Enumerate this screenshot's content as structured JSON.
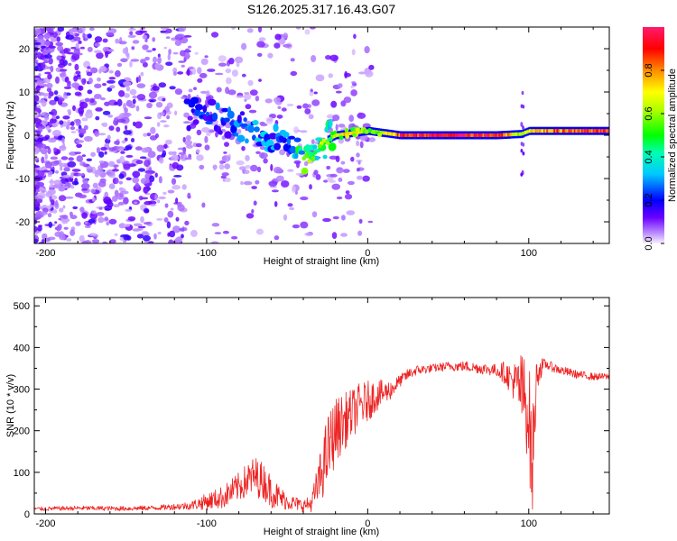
{
  "title": "S126.2025.317.16.43.G07",
  "colors": {
    "spectrum_palette": [
      "#9400d3",
      "#4b00ff",
      "#0000ff",
      "#00ffff",
      "#00ff00",
      "#ffff00",
      "#ff7f00",
      "#ff0000",
      "#ff1493"
    ],
    "snr_line": "#ee2222",
    "axis": "#000000"
  },
  "chart_data": [
    {
      "type": "heatmap",
      "title": "S126.2025.317.16.43.G07",
      "xlabel": "Height of straight line (km)",
      "ylabel": "Frequency (Hz)",
      "xlim": [
        -207,
        150
      ],
      "ylim": [
        -25,
        25
      ],
      "xticks": [
        -200,
        -100,
        0,
        100
      ],
      "xtick_labels": [
        "-200",
        "-100",
        "0",
        "100"
      ],
      "yticks": [
        20,
        10,
        0,
        -10,
        -20
      ],
      "ytick_labels": [
        "20",
        "10",
        "0",
        "-10",
        "-20"
      ],
      "colorbar": {
        "label": "Normalized spectral amplitude",
        "range": [
          0,
          1
        ],
        "ticks": [
          0.0,
          0.2,
          0.4,
          0.6,
          0.8
        ],
        "tick_labels": [
          "0.0",
          "0.2",
          "0.4",
          "0.6",
          "0.8"
        ]
      },
      "ridge": {
        "description": "dominant frequency ridge",
        "x": [
          -110,
          -90,
          -75,
          -60,
          -48,
          -40,
          -35,
          -30,
          -25,
          -20,
          -10,
          0,
          10,
          20,
          50,
          80,
          95,
          100,
          120,
          150
        ],
        "y": [
          5,
          4,
          2,
          0,
          -3,
          -5,
          -6,
          -3,
          -1,
          0,
          0.5,
          1,
          0.5,
          0,
          0,
          0,
          0.3,
          1,
          1,
          1
        ],
        "amplitude": [
          0.2,
          0.25,
          0.3,
          0.3,
          0.3,
          0.5,
          0.55,
          0.4,
          0.5,
          0.7,
          0.75,
          0.6,
          0.7,
          0.9,
          0.95,
          0.9,
          0.6,
          0.75,
          0.85,
          0.95
        ]
      },
      "vertical_spike": {
        "x": 96,
        "y_range": [
          -10,
          10
        ]
      }
    },
    {
      "type": "line",
      "xlabel": "Height of straight line (km)",
      "ylabel": "SNR (10 * v/v)",
      "xlim": [
        -207,
        150
      ],
      "ylim": [
        0,
        520
      ],
      "xticks": [
        -200,
        -100,
        0,
        100
      ],
      "xtick_labels": [
        "-200",
        "-100",
        "0",
        "100"
      ],
      "yticks": [
        0,
        100,
        200,
        300,
        400,
        500
      ],
      "ytick_labels": [
        "0",
        "100",
        "200",
        "300",
        "400",
        "500"
      ],
      "series": [
        {
          "name": "SNR",
          "x": [
            -207,
            -180,
            -150,
            -130,
            -110,
            -100,
            -90,
            -80,
            -75,
            -70,
            -65,
            -60,
            -55,
            -50,
            -45,
            -40,
            -35,
            -30,
            -25,
            -20,
            -15,
            -10,
            -5,
            0,
            5,
            10,
            15,
            20,
            25,
            30,
            40,
            50,
            60,
            70,
            80,
            85,
            90,
            95,
            100,
            102,
            105,
            110,
            120,
            130,
            140,
            150
          ],
          "y": [
            12,
            14,
            13,
            15,
            20,
            30,
            40,
            65,
            80,
            90,
            80,
            55,
            40,
            30,
            25,
            20,
            25,
            80,
            150,
            200,
            220,
            240,
            260,
            270,
            285,
            290,
            300,
            320,
            335,
            345,
            350,
            355,
            355,
            350,
            345,
            340,
            320,
            300,
            250,
            100,
            340,
            360,
            345,
            335,
            330,
            330
          ]
        }
      ],
      "amplitude_envelope": {
        "x": [
          -207,
          -130,
          -110,
          -100,
          -80,
          -70,
          -60,
          -50,
          -40,
          -35,
          -30,
          -25,
          -20,
          -10,
          0,
          10,
          20,
          40,
          80,
          90,
          95,
          100,
          102,
          105,
          110,
          150
        ],
        "half_width": [
          5,
          6,
          10,
          20,
          35,
          50,
          40,
          20,
          15,
          20,
          60,
          90,
          80,
          60,
          50,
          30,
          15,
          10,
          15,
          40,
          90,
          130,
          150,
          40,
          12,
          8
        ]
      }
    }
  ]
}
